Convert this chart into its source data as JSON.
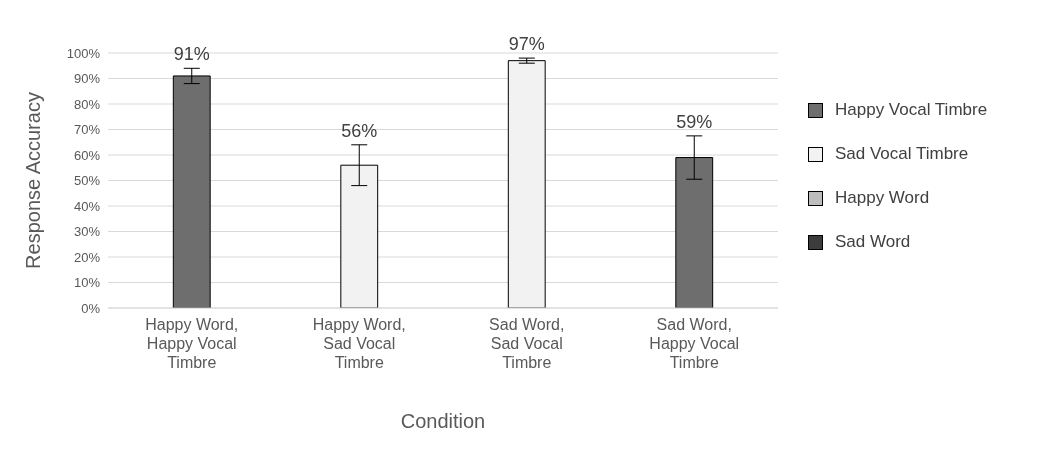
{
  "chart_data": {
    "type": "bar",
    "xlabel": "Condition",
    "ylabel": "Response Accuracy",
    "categories": [
      "Happy Word, Happy Vocal Timbre",
      "Happy Word, Sad Vocal Timbre",
      "Sad Word, Sad Vocal Timbre",
      "Sad Word, Happy Vocal Timbre"
    ],
    "series": [
      {
        "values": [
          91,
          56,
          97,
          59
        ],
        "colors": [
          "#6e6e6e",
          "#f2f2f2",
          "#f2f2f2",
          "#6e6e6e"
        ],
        "errors": [
          3,
          8,
          1,
          8.5
        ],
        "value_labels": [
          "91%",
          "56%",
          "97%",
          "59%"
        ]
      },
      {
        "name": "Happy Vocal Timbre",
        "color": "#6e6e6e",
        "values": [
          null,
          null,
          null,
          null
        ]
      },
      {
        "name": "Sad Vocal Timbre",
        "color": "#f2f2f2",
        "values": [
          null,
          null,
          null,
          null
        ]
      },
      {
        "name": "Happy Word",
        "color": "#bdbdbd",
        "values": [
          null,
          null,
          null,
          null
        ]
      },
      {
        "name": "Sad Word",
        "color": "#3c3c3c",
        "values": [
          null,
          null,
          null,
          null
        ]
      }
    ],
    "ylim": [
      0,
      100
    ],
    "yticks": [
      {
        "value": 0,
        "label": "0%"
      },
      {
        "value": 10,
        "label": "10%"
      },
      {
        "value": 20,
        "label": "20%"
      },
      {
        "value": 30,
        "label": "30%"
      },
      {
        "value": 40,
        "label": "40%"
      },
      {
        "value": 50,
        "label": "50%"
      },
      {
        "value": 60,
        "label": "60%"
      },
      {
        "value": 70,
        "label": "70%"
      },
      {
        "value": 80,
        "label": "80%"
      },
      {
        "value": 90,
        "label": "90%"
      },
      {
        "value": 100,
        "label": "100%"
      }
    ],
    "grid": "y",
    "legend": "right"
  }
}
